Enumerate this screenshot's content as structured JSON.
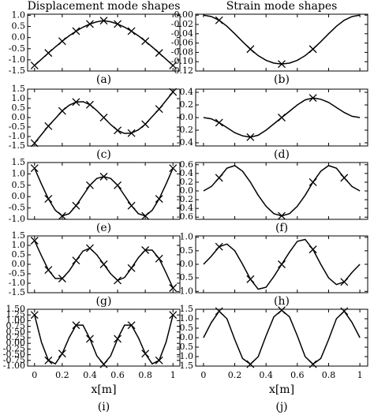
{
  "chart_data": [
    {
      "type": "line",
      "title": "Displacement mode shapes",
      "panel_label": "(a)",
      "x": [
        0,
        0.05,
        0.1,
        0.15,
        0.2,
        0.25,
        0.3,
        0.35,
        0.4,
        0.45,
        0.5,
        0.55,
        0.6,
        0.65,
        0.7,
        0.75,
        0.8,
        0.85,
        0.9,
        0.95,
        1
      ],
      "values": [
        -1.25,
        -0.97,
        -0.69,
        -0.42,
        -0.16,
        0.08,
        0.29,
        0.47,
        0.61,
        0.71,
        0.76,
        0.71,
        0.61,
        0.47,
        0.29,
        0.08,
        -0.16,
        -0.42,
        -0.69,
        -0.97,
        -1.25
      ],
      "marker_x": [
        0,
        0.1,
        0.2,
        0.3,
        0.4,
        0.5,
        0.6,
        0.7,
        0.8,
        0.9,
        1
      ],
      "marker_values": [
        -1.25,
        -0.69,
        -0.16,
        0.29,
        0.61,
        0.76,
        0.61,
        0.29,
        -0.16,
        -0.69,
        -1.25
      ],
      "xlim": [
        -0.05,
        1.05
      ],
      "xticks": [
        0,
        0.2,
        0.4,
        0.6,
        0.8,
        1
      ],
      "xtick_labels": false,
      "ylim": [
        -1.5,
        1.05
      ],
      "yticks": [
        {
          "value": -1.5,
          "label": "-1.5"
        },
        {
          "value": -1,
          "label": "-1.0"
        },
        {
          "value": -0.5,
          "label": "-0.5"
        },
        {
          "value": 0,
          "label": "0.0"
        },
        {
          "value": 0.5,
          "label": "0.5"
        },
        {
          "value": 1,
          "label": "1.0"
        }
      ]
    },
    {
      "type": "line",
      "title": "Strain mode shapes",
      "panel_label": "(b)",
      "x": [
        0,
        0.05,
        0.1,
        0.15,
        0.2,
        0.25,
        0.3,
        0.35,
        0.4,
        0.45,
        0.5,
        0.55,
        0.6,
        0.65,
        0.7,
        0.75,
        0.8,
        0.85,
        0.9,
        0.95,
        1
      ],
      "values": [
        0,
        -0.003,
        -0.011,
        -0.024,
        -0.04,
        -0.057,
        -0.073,
        -0.087,
        -0.097,
        -0.103,
        -0.105,
        -0.103,
        -0.097,
        -0.087,
        -0.073,
        -0.057,
        -0.04,
        -0.024,
        -0.011,
        -0.003,
        0
      ],
      "marker_x": [
        0.1,
        0.3,
        0.5,
        0.7
      ],
      "marker_values": [
        -0.011,
        -0.073,
        -0.105,
        -0.073
      ],
      "xlim": [
        -0.05,
        1.05
      ],
      "xticks": [
        0,
        0.2,
        0.4,
        0.6,
        0.8,
        1
      ],
      "xtick_labels": false,
      "ylim": [
        -0.12,
        0.002
      ],
      "yticks": [
        {
          "value": -0.12,
          "label": "-0.12"
        },
        {
          "value": -0.1,
          "label": "-0.10"
        },
        {
          "value": -0.08,
          "label": "-0.08"
        },
        {
          "value": -0.06,
          "label": "-0.06"
        },
        {
          "value": -0.04,
          "label": "-0.04"
        },
        {
          "value": -0.02,
          "label": "-0.02"
        },
        {
          "value": 0,
          "label": "0.00"
        }
      ]
    },
    {
      "type": "line",
      "panel_label": "(c)",
      "x": [
        0,
        0.05,
        0.1,
        0.15,
        0.2,
        0.25,
        0.3,
        0.35,
        0.4,
        0.45,
        0.5,
        0.55,
        0.6,
        0.65,
        0.7,
        0.75,
        0.8,
        0.85,
        0.9,
        0.95,
        1
      ],
      "values": [
        -1.35,
        -0.9,
        -0.45,
        -0.05,
        0.35,
        0.65,
        0.82,
        0.84,
        0.68,
        0.37,
        0,
        -0.37,
        -0.68,
        -0.84,
        -0.82,
        -0.65,
        -0.35,
        0.05,
        0.45,
        0.9,
        1.35
      ],
      "marker_x": [
        0,
        0.1,
        0.2,
        0.3,
        0.4,
        0.5,
        0.6,
        0.7,
        0.8,
        0.9,
        1
      ],
      "marker_values": [
        -1.35,
        -0.45,
        0.35,
        0.82,
        0.68,
        0,
        -0.68,
        -0.82,
        -0.35,
        0.45,
        1.35
      ],
      "xlim": [
        -0.05,
        1.05
      ],
      "xticks": [
        0,
        0.2,
        0.4,
        0.6,
        0.8,
        1
      ],
      "xtick_labels": false,
      "ylim": [
        -1.5,
        1.5
      ],
      "yticks": [
        {
          "value": -1.5,
          "label": "-1.5"
        },
        {
          "value": -1,
          "label": "-1.0"
        },
        {
          "value": -0.5,
          "label": "-0.5"
        },
        {
          "value": 0,
          "label": "0.0"
        },
        {
          "value": 0.5,
          "label": "0.5"
        },
        {
          "value": 1,
          "label": "1.0"
        },
        {
          "value": 1.5,
          "label": "1.5"
        }
      ]
    },
    {
      "type": "line",
      "panel_label": "(d)",
      "x": [
        0,
        0.05,
        0.1,
        0.15,
        0.2,
        0.25,
        0.3,
        0.35,
        0.4,
        0.45,
        0.5,
        0.55,
        0.6,
        0.65,
        0.7,
        0.75,
        0.8,
        0.85,
        0.9,
        0.95,
        1
      ],
      "values": [
        0,
        -0.02,
        -0.08,
        -0.16,
        -0.24,
        -0.29,
        -0.31,
        -0.28,
        -0.2,
        -0.1,
        0,
        0.1,
        0.2,
        0.28,
        0.31,
        0.29,
        0.24,
        0.16,
        0.08,
        0.02,
        0
      ],
      "marker_x": [
        0.1,
        0.3,
        0.5,
        0.7
      ],
      "marker_values": [
        -0.08,
        -0.31,
        0,
        0.31
      ],
      "xlim": [
        -0.05,
        1.05
      ],
      "xticks": [
        0,
        0.2,
        0.4,
        0.6,
        0.8,
        1
      ],
      "xtick_labels": false,
      "ylim": [
        -0.45,
        0.45
      ],
      "yticks": [
        {
          "value": -0.4,
          "label": "-0.4"
        },
        {
          "value": -0.2,
          "label": "-0.2"
        },
        {
          "value": 0,
          "label": "0.0"
        },
        {
          "value": 0.2,
          "label": "0.2"
        },
        {
          "value": 0.4,
          "label": "0.4"
        }
      ]
    },
    {
      "type": "line",
      "panel_label": "(e)",
      "x": [
        0,
        0.05,
        0.1,
        0.15,
        0.2,
        0.25,
        0.3,
        0.35,
        0.4,
        0.45,
        0.5,
        0.55,
        0.6,
        0.65,
        0.7,
        0.75,
        0.8,
        0.85,
        0.9,
        0.95,
        1
      ],
      "values": [
        1.25,
        0.55,
        -0.1,
        -0.6,
        -0.85,
        -0.75,
        -0.4,
        0.05,
        0.5,
        0.8,
        0.88,
        0.8,
        0.5,
        0.05,
        -0.4,
        -0.75,
        -0.85,
        -0.6,
        -0.1,
        0.55,
        1.25
      ],
      "marker_x": [
        0,
        0.1,
        0.2,
        0.3,
        0.4,
        0.5,
        0.6,
        0.7,
        0.8,
        0.9,
        1
      ],
      "marker_values": [
        1.25,
        -0.1,
        -0.85,
        -0.4,
        0.5,
        0.88,
        0.5,
        -0.4,
        -0.85,
        -0.1,
        1.25
      ],
      "xlim": [
        -0.05,
        1.05
      ],
      "xticks": [
        0,
        0.2,
        0.4,
        0.6,
        0.8,
        1
      ],
      "xtick_labels": false,
      "ylim": [
        -1.0,
        1.5
      ],
      "yticks": [
        {
          "value": -1,
          "label": "-1.0"
        },
        {
          "value": -0.5,
          "label": "-0.5"
        },
        {
          "value": 0,
          "label": "0.0"
        },
        {
          "value": 0.5,
          "label": "0.5"
        },
        {
          "value": 1,
          "label": "1.0"
        },
        {
          "value": 1.5,
          "label": "1.5"
        }
      ]
    },
    {
      "type": "line",
      "panel_label": "(f)",
      "x": [
        0,
        0.05,
        0.1,
        0.15,
        0.2,
        0.25,
        0.3,
        0.35,
        0.4,
        0.45,
        0.5,
        0.55,
        0.6,
        0.65,
        0.7,
        0.75,
        0.8,
        0.85,
        0.9,
        0.95,
        1
      ],
      "values": [
        0,
        0.1,
        0.3,
        0.52,
        0.58,
        0.45,
        0.2,
        -0.1,
        -0.35,
        -0.52,
        -0.57,
        -0.52,
        -0.35,
        -0.1,
        0.2,
        0.45,
        0.58,
        0.52,
        0.3,
        0.1,
        0
      ],
      "marker_x": [
        0.1,
        0.5,
        0.7,
        0.9
      ],
      "marker_values": [
        0.3,
        -0.57,
        0.2,
        0.3
      ],
      "xlim": [
        -0.05,
        1.05
      ],
      "xticks": [
        0,
        0.2,
        0.4,
        0.6,
        0.8,
        1
      ],
      "xtick_labels": false,
      "ylim": [
        -0.65,
        0.65
      ],
      "yticks": [
        {
          "value": -0.6,
          "label": "-0.6"
        },
        {
          "value": -0.4,
          "label": "-0.4"
        },
        {
          "value": -0.2,
          "label": "-0.2"
        },
        {
          "value": 0,
          "label": "0.0"
        },
        {
          "value": 0.2,
          "label": "0.2"
        },
        {
          "value": 0.4,
          "label": "0.4"
        },
        {
          "value": 0.6,
          "label": "0.6"
        }
      ]
    },
    {
      "type": "line",
      "panel_label": "(g)",
      "x": [
        0,
        0.05,
        0.1,
        0.15,
        0.2,
        0.25,
        0.3,
        0.35,
        0.4,
        0.45,
        0.5,
        0.55,
        0.6,
        0.65,
        0.7,
        0.75,
        0.8,
        0.85,
        0.9,
        0.95,
        1
      ],
      "values": [
        1.25,
        0.45,
        -0.3,
        -0.75,
        -0.75,
        -0.35,
        0.2,
        0.7,
        0.85,
        0.5,
        0,
        -0.5,
        -0.85,
        -0.7,
        -0.2,
        0.35,
        0.75,
        0.75,
        0.3,
        -0.45,
        -1.25
      ],
      "marker_x": [
        0,
        0.1,
        0.2,
        0.3,
        0.4,
        0.5,
        0.6,
        0.7,
        0.8,
        0.9,
        1
      ],
      "marker_values": [
        1.25,
        -0.3,
        -0.75,
        0.2,
        0.85,
        0,
        -0.85,
        -0.2,
        0.75,
        0.3,
        -1.25
      ],
      "xlim": [
        -0.05,
        1.05
      ],
      "xticks": [
        0,
        0.2,
        0.4,
        0.6,
        0.8,
        1
      ],
      "xtick_labels": false,
      "ylim": [
        -1.5,
        1.5
      ],
      "yticks": [
        {
          "value": -1.5,
          "label": "-1.5"
        },
        {
          "value": -1,
          "label": "-1.0"
        },
        {
          "value": -0.5,
          "label": "-0.5"
        },
        {
          "value": 0,
          "label": "0.0"
        },
        {
          "value": 0.5,
          "label": "0.5"
        },
        {
          "value": 1,
          "label": "1.0"
        },
        {
          "value": 1.5,
          "label": "1.5"
        }
      ]
    },
    {
      "type": "line",
      "panel_label": "(h)",
      "x": [
        0,
        0.05,
        0.1,
        0.15,
        0.2,
        0.25,
        0.3,
        0.35,
        0.4,
        0.45,
        0.5,
        0.55,
        0.6,
        0.65,
        0.7,
        0.75,
        0.8,
        0.85,
        0.9,
        0.95,
        1
      ],
      "values": [
        0,
        0.3,
        0.65,
        0.75,
        0.5,
        0,
        -0.55,
        -0.92,
        -0.85,
        -0.45,
        0,
        0.45,
        0.85,
        0.92,
        0.55,
        0,
        -0.5,
        -0.75,
        -0.65,
        -0.3,
        0
      ],
      "marker_x": [
        0.1,
        0.3,
        0.5,
        0.7,
        0.9
      ],
      "marker_values": [
        0.65,
        -0.55,
        0,
        0.55,
        -0.65
      ],
      "xlim": [
        -0.05,
        1.05
      ],
      "xticks": [
        0,
        0.2,
        0.4,
        0.6,
        0.8,
        1
      ],
      "xtick_labels": false,
      "ylim": [
        -1.05,
        1.05
      ],
      "yticks": [
        {
          "value": -1,
          "label": "-1.0"
        },
        {
          "value": -0.5,
          "label": "-0.5"
        },
        {
          "value": 0,
          "label": "0.0"
        },
        {
          "value": 0.5,
          "label": "0.5"
        },
        {
          "value": 1,
          "label": "1.0"
        }
      ]
    },
    {
      "type": "line",
      "panel_label": "(i)",
      "xlabel": "x[m]",
      "x": [
        0,
        0.05,
        0.1,
        0.15,
        0.2,
        0.25,
        0.3,
        0.35,
        0.4,
        0.45,
        0.5,
        0.55,
        0.6,
        0.65,
        0.7,
        0.75,
        0.8,
        0.85,
        0.9,
        0.95,
        1
      ],
      "values": [
        1.25,
        0.05,
        -0.75,
        -0.9,
        -0.45,
        0.25,
        0.8,
        0.8,
        0.2,
        -0.55,
        -0.92,
        -0.55,
        0.2,
        0.8,
        0.8,
        0.25,
        -0.45,
        -0.9,
        -0.75,
        0.05,
        1.25
      ],
      "marker_x": [
        0,
        0.1,
        0.2,
        0.3,
        0.4,
        0.5,
        0.6,
        0.7,
        0.8,
        0.9,
        1
      ],
      "marker_values": [
        1.25,
        -0.75,
        -0.45,
        0.8,
        0.2,
        -0.92,
        0.2,
        0.8,
        -0.45,
        -0.75,
        1.25
      ],
      "xlim": [
        -0.05,
        1.05
      ],
      "xticks": [
        0,
        0.2,
        0.4,
        0.6,
        0.8,
        1
      ],
      "xtick_labels": true,
      "ylim": [
        -1.0,
        1.5
      ],
      "yticks": [
        {
          "value": -1,
          "label": "-1.00"
        },
        {
          "value": -0.75,
          "label": "-0.75"
        },
        {
          "value": -0.5,
          "label": "-0.50"
        },
        {
          "value": -0.25,
          "label": "-0.25"
        },
        {
          "value": 0,
          "label": "0.00"
        },
        {
          "value": 0.25,
          "label": "0.25"
        },
        {
          "value": 0.5,
          "label": "0.50"
        },
        {
          "value": 0.75,
          "label": "0.75"
        },
        {
          "value": 1,
          "label": "1.00"
        },
        {
          "value": 1.25,
          "label": "1.25"
        },
        {
          "value": 1.5,
          "label": "1.50"
        }
      ]
    },
    {
      "type": "line",
      "panel_label": "(j)",
      "xlabel": "x[m]",
      "x": [
        0,
        0.05,
        0.1,
        0.15,
        0.2,
        0.25,
        0.3,
        0.35,
        0.4,
        0.45,
        0.5,
        0.55,
        0.6,
        0.65,
        0.7,
        0.75,
        0.8,
        0.85,
        0.9,
        0.95,
        1
      ],
      "values": [
        0,
        0.8,
        1.4,
        1.0,
        -0.1,
        -1.1,
        -1.4,
        -1.0,
        0.1,
        1.1,
        1.45,
        1.1,
        0.1,
        -1.0,
        -1.4,
        -1.1,
        -0.1,
        1.0,
        1.4,
        0.8,
        0
      ],
      "marker_x": [
        0.1,
        0.3,
        0.5,
        0.7,
        0.9
      ],
      "marker_values": [
        1.4,
        -1.4,
        1.45,
        -1.4,
        1.4
      ],
      "xlim": [
        -0.05,
        1.05
      ],
      "xticks": [
        0,
        0.2,
        0.4,
        0.6,
        0.8,
        1
      ],
      "xtick_labels": true,
      "ylim": [
        -1.5,
        1.5
      ],
      "yticks": [
        {
          "value": -1.5,
          "label": "-1.5"
        },
        {
          "value": -1,
          "label": "-1.0"
        },
        {
          "value": -0.5,
          "label": "-0.5"
        },
        {
          "value": 0,
          "label": "0.0"
        },
        {
          "value": 0.5,
          "label": "0.5"
        },
        {
          "value": 1,
          "label": "1.0"
        },
        {
          "value": 1.5,
          "label": "1.5"
        }
      ]
    }
  ]
}
